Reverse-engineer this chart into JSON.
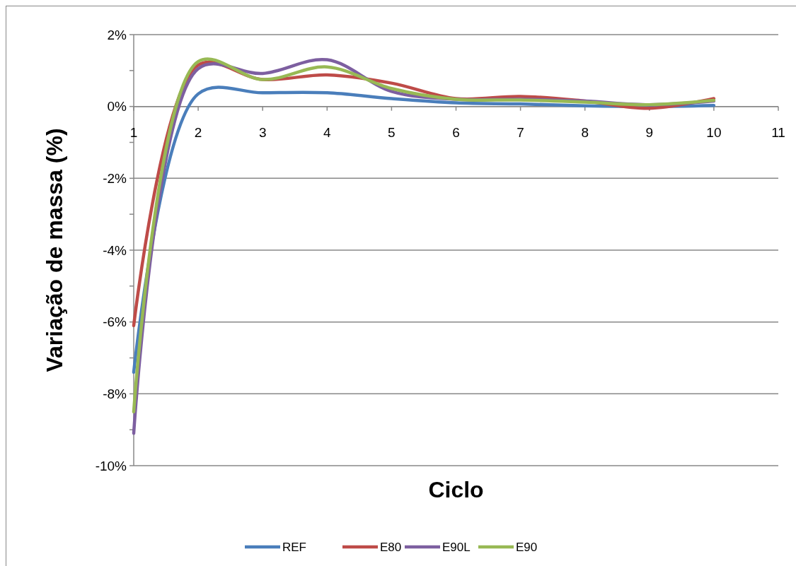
{
  "chart_data": {
    "type": "line",
    "xlabel": "Ciclo",
    "ylabel": "Variação de massa (%)",
    "x": [
      1,
      2,
      3,
      4,
      5,
      6,
      7,
      8,
      9,
      10
    ],
    "series": [
      {
        "name": "REF",
        "color": "#4a7ebb",
        "values": [
          -7.4,
          0.35,
          0.38,
          0.38,
          0.22,
          0.1,
          0.07,
          0.02,
          0.0,
          0.03
        ]
      },
      {
        "name": "E80",
        "color": "#be4b48",
        "values": [
          -6.1,
          1.15,
          0.75,
          0.88,
          0.65,
          0.22,
          0.28,
          0.15,
          -0.05,
          0.22
        ]
      },
      {
        "name": "E90L",
        "color": "#7d5fa0",
        "values": [
          -9.1,
          1.05,
          0.92,
          1.3,
          0.42,
          0.2,
          0.2,
          0.15,
          0.05,
          0.15
        ]
      },
      {
        "name": "E90",
        "color": "#98b954",
        "values": [
          -8.5,
          1.25,
          0.75,
          1.1,
          0.5,
          0.2,
          0.18,
          0.12,
          0.05,
          0.17
        ]
      }
    ],
    "xlim": [
      1,
      11
    ],
    "xticks": [
      1,
      2,
      3,
      4,
      5,
      6,
      7,
      8,
      9,
      10,
      11
    ],
    "ylim": [
      -10,
      2
    ],
    "yticks": [
      {
        "value": -10,
        "label": "-10%"
      },
      {
        "value": -9,
        "label": null
      },
      {
        "value": -8,
        "label": "-8%"
      },
      {
        "value": -7,
        "label": null
      },
      {
        "value": -6,
        "label": "-6%"
      },
      {
        "value": -5,
        "label": null
      },
      {
        "value": -4,
        "label": "-4%"
      },
      {
        "value": -3,
        "label": null
      },
      {
        "value": -2,
        "label": "-2%"
      },
      {
        "value": -1,
        "label": null
      },
      {
        "value": 0,
        "label": "0%"
      },
      {
        "value": 1,
        "label": null
      },
      {
        "value": 2,
        "label": "2%"
      }
    ],
    "grid": "y",
    "legend": "bottom",
    "marker": "none",
    "line_style": "solid"
  }
}
